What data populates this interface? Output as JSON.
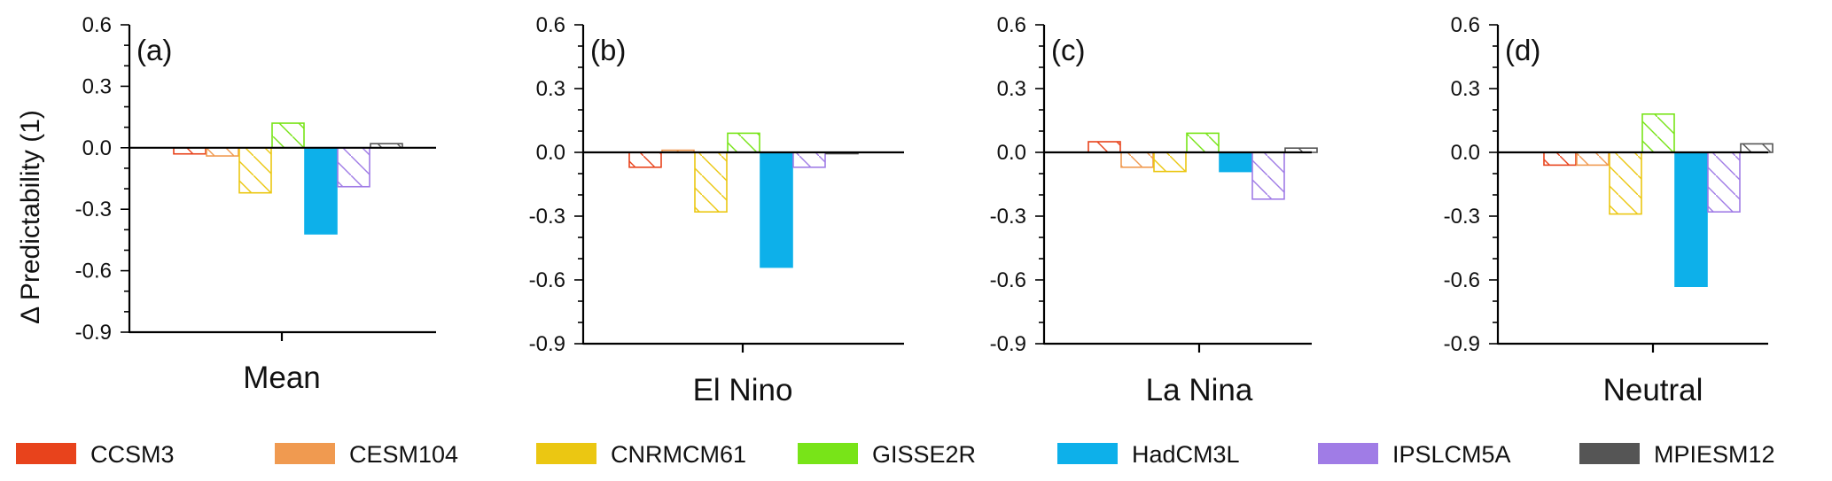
{
  "chart_data": {
    "type": "bar",
    "ylabel": "Δ Predictability (1)",
    "ylim": [
      -0.9,
      0.6
    ],
    "yticks": [
      "0.6",
      "0.3",
      "0.0",
      "-0.3",
      "-0.6",
      "-0.9"
    ],
    "ytick_values": [
      0.6,
      0.3,
      0.0,
      -0.3,
      -0.6,
      -0.9
    ],
    "grid": false,
    "legend_position": "bottom",
    "series": [
      {
        "name": "CCSM3",
        "color": "#e8431c",
        "fill": "hatch"
      },
      {
        "name": "CESM104",
        "color": "#f09a50",
        "fill": "hatch"
      },
      {
        "name": "CNRMCM61",
        "color": "#ebc712",
        "fill": "hatch"
      },
      {
        "name": "GISSE2R",
        "color": "#78e418",
        "fill": "hatch"
      },
      {
        "name": "HadCM3L",
        "color": "#0db0ea",
        "fill": "solid"
      },
      {
        "name": "IPSLCM5A",
        "color": "#a07ce6",
        "fill": "hatch"
      },
      {
        "name": "MPIESM12",
        "color": "#555555",
        "fill": "hatch"
      }
    ],
    "panels": [
      {
        "tag": "(a)",
        "category": "Mean",
        "values": [
          -0.03,
          -0.04,
          -0.22,
          0.12,
          -0.42,
          -0.19,
          0.02
        ]
      },
      {
        "tag": "(b)",
        "category": "El Nino",
        "values": [
          -0.07,
          0.01,
          -0.28,
          0.09,
          -0.54,
          -0.07,
          0.0
        ]
      },
      {
        "tag": "(c)",
        "category": "La Nina",
        "values": [
          0.05,
          -0.07,
          -0.09,
          0.09,
          -0.09,
          -0.22,
          0.02
        ]
      },
      {
        "tag": "(d)",
        "category": "Neutral",
        "values": [
          -0.06,
          -0.06,
          -0.29,
          0.18,
          -0.63,
          -0.28,
          0.04
        ]
      }
    ]
  }
}
